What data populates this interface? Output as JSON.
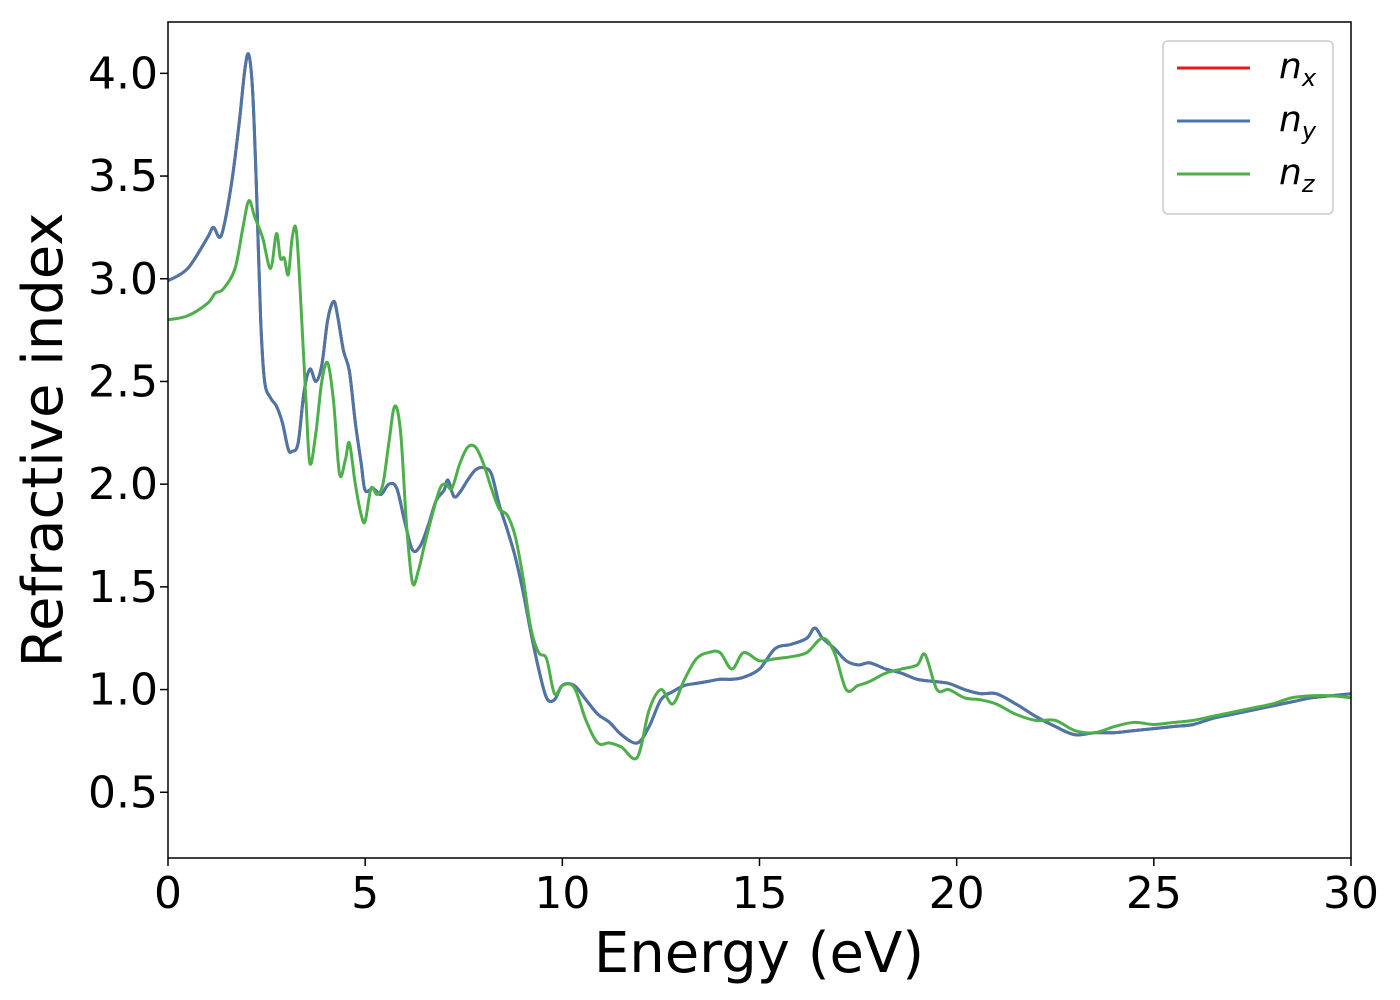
{
  "chart_data": {
    "type": "line",
    "xlabel": "Energy (eV)",
    "ylabel": "Refractive index",
    "xlim": [
      0,
      30
    ],
    "ylim": [
      0.18,
      4.25
    ],
    "xticks": [
      0,
      5,
      10,
      15,
      20,
      25,
      30
    ],
    "xtick_labels": [
      "0",
      "5",
      "10",
      "15",
      "20",
      "25",
      "30"
    ],
    "yticks": [
      0.5,
      1.0,
      1.5,
      2.0,
      2.5,
      3.0,
      3.5,
      4.0
    ],
    "ytick_labels": [
      "0.5",
      "1.0",
      "1.5",
      "2.0",
      "2.5",
      "3.0",
      "3.5",
      "4.0"
    ],
    "grid": false,
    "legend_position": "top-right",
    "series": [
      {
        "name": "n",
        "subscript": "x",
        "color": "#e41a1c",
        "x": [
          0,
          0.5,
          1.0,
          1.15,
          1.35,
          1.6,
          1.8,
          1.95,
          2.05,
          2.15,
          2.25,
          2.35,
          2.45,
          2.6,
          2.75,
          2.9,
          3.05,
          3.15,
          3.3,
          3.45,
          3.6,
          3.75,
          3.9,
          4.05,
          4.2,
          4.3,
          4.45,
          4.6,
          4.75,
          4.9,
          5.0,
          5.2,
          5.4,
          5.6,
          5.8,
          6.0,
          6.2,
          6.4,
          6.6,
          6.8,
          7.0,
          7.1,
          7.25,
          7.4,
          7.6,
          7.8,
          8.0,
          8.2,
          8.4,
          8.6,
          8.8,
          9.0,
          9.2,
          9.4,
          9.6,
          9.8,
          10.0,
          10.3,
          10.6,
          10.9,
          11.2,
          11.5,
          11.9,
          12.2,
          12.5,
          12.8,
          13.1,
          13.4,
          13.7,
          14.0,
          14.3,
          14.6,
          15.0,
          15.4,
          15.8,
          16.2,
          16.4,
          16.6,
          16.9,
          17.2,
          17.5,
          17.8,
          18.2,
          18.6,
          19.0,
          19.4,
          19.8,
          20.2,
          20.6,
          21.0,
          21.5,
          22.0,
          22.5,
          23.0,
          23.5,
          24.0,
          24.5,
          25.0,
          25.5,
          26.0,
          26.5,
          27.0,
          27.5,
          28.0,
          28.5,
          29.0,
          29.5,
          30.0
        ],
        "y": [
          2.99,
          3.05,
          3.2,
          3.25,
          3.21,
          3.45,
          3.75,
          4.02,
          4.09,
          3.9,
          3.4,
          2.8,
          2.5,
          2.42,
          2.38,
          2.3,
          2.17,
          2.16,
          2.2,
          2.45,
          2.56,
          2.5,
          2.58,
          2.8,
          2.89,
          2.82,
          2.65,
          2.55,
          2.3,
          2.1,
          1.97,
          1.98,
          1.95,
          2.0,
          1.98,
          1.82,
          1.68,
          1.7,
          1.8,
          1.92,
          1.97,
          2.02,
          1.94,
          1.96,
          2.02,
          2.07,
          2.08,
          2.05,
          1.9,
          1.78,
          1.65,
          1.48,
          1.28,
          1.1,
          0.96,
          0.95,
          1.02,
          1.02,
          0.95,
          0.88,
          0.84,
          0.78,
          0.74,
          0.82,
          0.95,
          0.99,
          1.02,
          1.03,
          1.04,
          1.05,
          1.05,
          1.06,
          1.1,
          1.2,
          1.22,
          1.25,
          1.3,
          1.25,
          1.2,
          1.14,
          1.12,
          1.13,
          1.1,
          1.08,
          1.05,
          1.04,
          1.03,
          1.0,
          0.98,
          0.98,
          0.93,
          0.87,
          0.82,
          0.78,
          0.79,
          0.79,
          0.8,
          0.81,
          0.82,
          0.83,
          0.86,
          0.88,
          0.9,
          0.92,
          0.94,
          0.96,
          0.97,
          0.98
        ]
      },
      {
        "name": "n",
        "subscript": "y",
        "color": "#4a76a8",
        "x": [
          0,
          0.5,
          1.0,
          1.15,
          1.35,
          1.6,
          1.8,
          1.95,
          2.05,
          2.15,
          2.25,
          2.35,
          2.45,
          2.6,
          2.75,
          2.9,
          3.05,
          3.15,
          3.3,
          3.45,
          3.6,
          3.75,
          3.9,
          4.05,
          4.2,
          4.3,
          4.45,
          4.6,
          4.75,
          4.9,
          5.0,
          5.2,
          5.4,
          5.6,
          5.8,
          6.0,
          6.2,
          6.4,
          6.6,
          6.8,
          7.0,
          7.1,
          7.25,
          7.4,
          7.6,
          7.8,
          8.0,
          8.2,
          8.4,
          8.6,
          8.8,
          9.0,
          9.2,
          9.4,
          9.6,
          9.8,
          10.0,
          10.3,
          10.6,
          10.9,
          11.2,
          11.5,
          11.9,
          12.2,
          12.5,
          12.8,
          13.1,
          13.4,
          13.7,
          14.0,
          14.3,
          14.6,
          15.0,
          15.4,
          15.8,
          16.2,
          16.4,
          16.6,
          16.9,
          17.2,
          17.5,
          17.8,
          18.2,
          18.6,
          19.0,
          19.4,
          19.8,
          20.2,
          20.6,
          21.0,
          21.5,
          22.0,
          22.5,
          23.0,
          23.5,
          24.0,
          24.5,
          25.0,
          25.5,
          26.0,
          26.5,
          27.0,
          27.5,
          28.0,
          28.5,
          29.0,
          29.5,
          30.0
        ],
        "y": [
          2.99,
          3.05,
          3.2,
          3.25,
          3.21,
          3.45,
          3.75,
          4.02,
          4.09,
          3.9,
          3.4,
          2.8,
          2.5,
          2.42,
          2.38,
          2.3,
          2.17,
          2.16,
          2.2,
          2.45,
          2.56,
          2.5,
          2.58,
          2.8,
          2.89,
          2.82,
          2.65,
          2.55,
          2.3,
          2.1,
          1.97,
          1.98,
          1.95,
          2.0,
          1.98,
          1.82,
          1.68,
          1.7,
          1.8,
          1.92,
          1.97,
          2.02,
          1.94,
          1.96,
          2.02,
          2.07,
          2.08,
          2.05,
          1.9,
          1.78,
          1.65,
          1.48,
          1.28,
          1.1,
          0.96,
          0.95,
          1.02,
          1.02,
          0.95,
          0.88,
          0.84,
          0.78,
          0.74,
          0.82,
          0.95,
          0.99,
          1.02,
          1.03,
          1.04,
          1.05,
          1.05,
          1.06,
          1.1,
          1.2,
          1.22,
          1.25,
          1.3,
          1.25,
          1.2,
          1.14,
          1.12,
          1.13,
          1.1,
          1.08,
          1.05,
          1.04,
          1.03,
          1.0,
          0.98,
          0.98,
          0.93,
          0.87,
          0.82,
          0.78,
          0.79,
          0.79,
          0.8,
          0.81,
          0.82,
          0.83,
          0.86,
          0.88,
          0.9,
          0.92,
          0.94,
          0.96,
          0.97,
          0.98
        ]
      },
      {
        "name": "n",
        "subscript": "z",
        "color": "#4daf4a",
        "x": [
          0,
          0.5,
          1.0,
          1.2,
          1.4,
          1.7,
          1.9,
          2.05,
          2.2,
          2.4,
          2.6,
          2.75,
          2.85,
          2.95,
          3.05,
          3.15,
          3.25,
          3.35,
          3.5,
          3.6,
          3.75,
          3.9,
          4.05,
          4.2,
          4.35,
          4.5,
          4.6,
          4.75,
          4.9,
          5.0,
          5.15,
          5.3,
          5.45,
          5.6,
          5.75,
          5.9,
          6.05,
          6.2,
          6.35,
          6.5,
          6.7,
          6.9,
          7.05,
          7.2,
          7.4,
          7.6,
          7.8,
          8.0,
          8.2,
          8.4,
          8.6,
          8.8,
          9.0,
          9.2,
          9.4,
          9.6,
          9.8,
          10.0,
          10.3,
          10.6,
          10.9,
          11.2,
          11.5,
          11.9,
          12.2,
          12.5,
          12.8,
          13.1,
          13.4,
          13.7,
          14.0,
          14.3,
          14.6,
          15.0,
          15.4,
          15.8,
          16.2,
          16.6,
          16.9,
          17.2,
          17.5,
          17.8,
          18.2,
          18.6,
          19.0,
          19.2,
          19.5,
          19.8,
          20.2,
          20.6,
          21.0,
          21.5,
          22.0,
          22.5,
          23.0,
          23.5,
          24.0,
          24.5,
          25.0,
          25.5,
          26.0,
          26.5,
          27.0,
          27.5,
          28.0,
          28.5,
          29.0,
          29.5,
          30.0
        ],
        "y": [
          2.8,
          2.82,
          2.88,
          2.93,
          2.95,
          3.05,
          3.25,
          3.38,
          3.3,
          3.2,
          3.05,
          3.22,
          3.1,
          3.1,
          3.02,
          3.2,
          3.24,
          2.95,
          2.4,
          2.1,
          2.25,
          2.5,
          2.59,
          2.4,
          2.05,
          2.12,
          2.2,
          2.0,
          1.85,
          1.82,
          1.98,
          1.95,
          2.0,
          2.2,
          2.38,
          2.25,
          1.8,
          1.52,
          1.58,
          1.7,
          1.85,
          1.98,
          2.0,
          1.98,
          2.1,
          2.18,
          2.18,
          2.1,
          1.98,
          1.88,
          1.85,
          1.75,
          1.55,
          1.3,
          1.18,
          1.15,
          0.98,
          1.02,
          1.01,
          0.85,
          0.74,
          0.74,
          0.72,
          0.67,
          0.9,
          1.0,
          0.93,
          1.05,
          1.15,
          1.18,
          1.18,
          1.1,
          1.18,
          1.14,
          1.15,
          1.16,
          1.18,
          1.25,
          1.18,
          1.0,
          1.02,
          1.04,
          1.08,
          1.1,
          1.12,
          1.17,
          1.0,
          1.0,
          0.96,
          0.95,
          0.93,
          0.88,
          0.85,
          0.85,
          0.8,
          0.79,
          0.82,
          0.84,
          0.83,
          0.84,
          0.85,
          0.87,
          0.89,
          0.91,
          0.93,
          0.96,
          0.97,
          0.97,
          0.96
        ]
      }
    ]
  }
}
